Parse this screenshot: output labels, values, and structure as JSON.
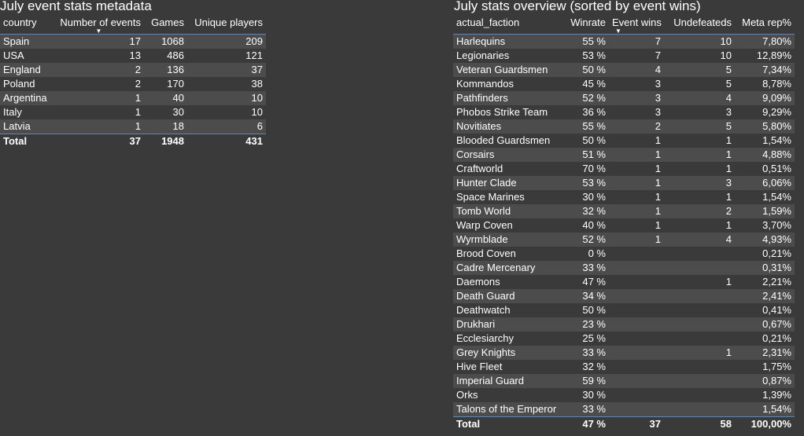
{
  "left": {
    "title": "July event stats metadata",
    "headers": [
      "country",
      "Number of events",
      "Games",
      "Unique players"
    ],
    "rows": [
      [
        "Spain",
        "17",
        "1068",
        "209"
      ],
      [
        "USA",
        "13",
        "486",
        "121"
      ],
      [
        "England",
        "2",
        "136",
        "37"
      ],
      [
        "Poland",
        "2",
        "170",
        "38"
      ],
      [
        "Argentina",
        "1",
        "40",
        "10"
      ],
      [
        "Italy",
        "1",
        "30",
        "10"
      ],
      [
        "Latvia",
        "1",
        "18",
        "6"
      ]
    ],
    "total": [
      "Total",
      "37",
      "1948",
      "431"
    ]
  },
  "right": {
    "title": "July stats overview (sorted by event wins)",
    "headers": [
      "actual_faction",
      "Winrate",
      "Event wins",
      "Undefeateds",
      "Meta rep%"
    ],
    "rows": [
      [
        "Harlequins",
        "55 %",
        "7",
        "10",
        "7,80%"
      ],
      [
        "Legionaries",
        "53 %",
        "7",
        "10",
        "12,89%"
      ],
      [
        "Veteran Guardsmen",
        "50 %",
        "4",
        "5",
        "7,34%"
      ],
      [
        "Kommandos",
        "45 %",
        "3",
        "5",
        "8,78%"
      ],
      [
        "Pathfinders",
        "52 %",
        "3",
        "4",
        "9,09%"
      ],
      [
        "Phobos Strike Team",
        "36 %",
        "3",
        "3",
        "9,29%"
      ],
      [
        "Novitiates",
        "55 %",
        "2",
        "5",
        "5,80%"
      ],
      [
        "Blooded Guardsmen",
        "50 %",
        "1",
        "1",
        "1,54%"
      ],
      [
        "Corsairs",
        "51 %",
        "1",
        "1",
        "4,88%"
      ],
      [
        "Craftworld",
        "70 %",
        "1",
        "1",
        "0,51%"
      ],
      [
        "Hunter Clade",
        "53 %",
        "1",
        "3",
        "6,06%"
      ],
      [
        "Space Marines",
        "30 %",
        "1",
        "1",
        "1,54%"
      ],
      [
        "Tomb World",
        "32 %",
        "1",
        "2",
        "1,59%"
      ],
      [
        "Warp Coven",
        "40 %",
        "1",
        "1",
        "3,70%"
      ],
      [
        "Wyrmblade",
        "52 %",
        "1",
        "4",
        "4,93%"
      ],
      [
        "Brood Coven",
        "0 %",
        "",
        "",
        "0,21%"
      ],
      [
        "Cadre Mercenary",
        "33 %",
        "",
        "",
        "0,31%"
      ],
      [
        "Daemons",
        "47 %",
        "",
        "1",
        "2,21%"
      ],
      [
        "Death Guard",
        "34 %",
        "",
        "",
        "2,41%"
      ],
      [
        "Deathwatch",
        "50 %",
        "",
        "",
        "0,41%"
      ],
      [
        "Drukhari",
        "23 %",
        "",
        "",
        "0,67%"
      ],
      [
        "Ecclesiarchy",
        "25 %",
        "",
        "",
        "0,21%"
      ],
      [
        "Grey Knights",
        "33 %",
        "",
        "1",
        "2,31%"
      ],
      [
        "Hive Fleet",
        "32 %",
        "",
        "",
        "1,75%"
      ],
      [
        "Imperial Guard",
        "59 %",
        "",
        "",
        "0,87%"
      ],
      [
        "Orks",
        "30 %",
        "",
        "",
        "1,39%"
      ],
      [
        "Talons of the Emperor",
        "33 %",
        "",
        "",
        "1,54%"
      ]
    ],
    "total": [
      "Total",
      "47 %",
      "37",
      "58",
      "100,00%"
    ]
  },
  "colors": {
    "background": "#3a3a3a",
    "stripe": "#4c4c4c",
    "header_rule": "#5b87b6",
    "text": "#ffffff"
  }
}
